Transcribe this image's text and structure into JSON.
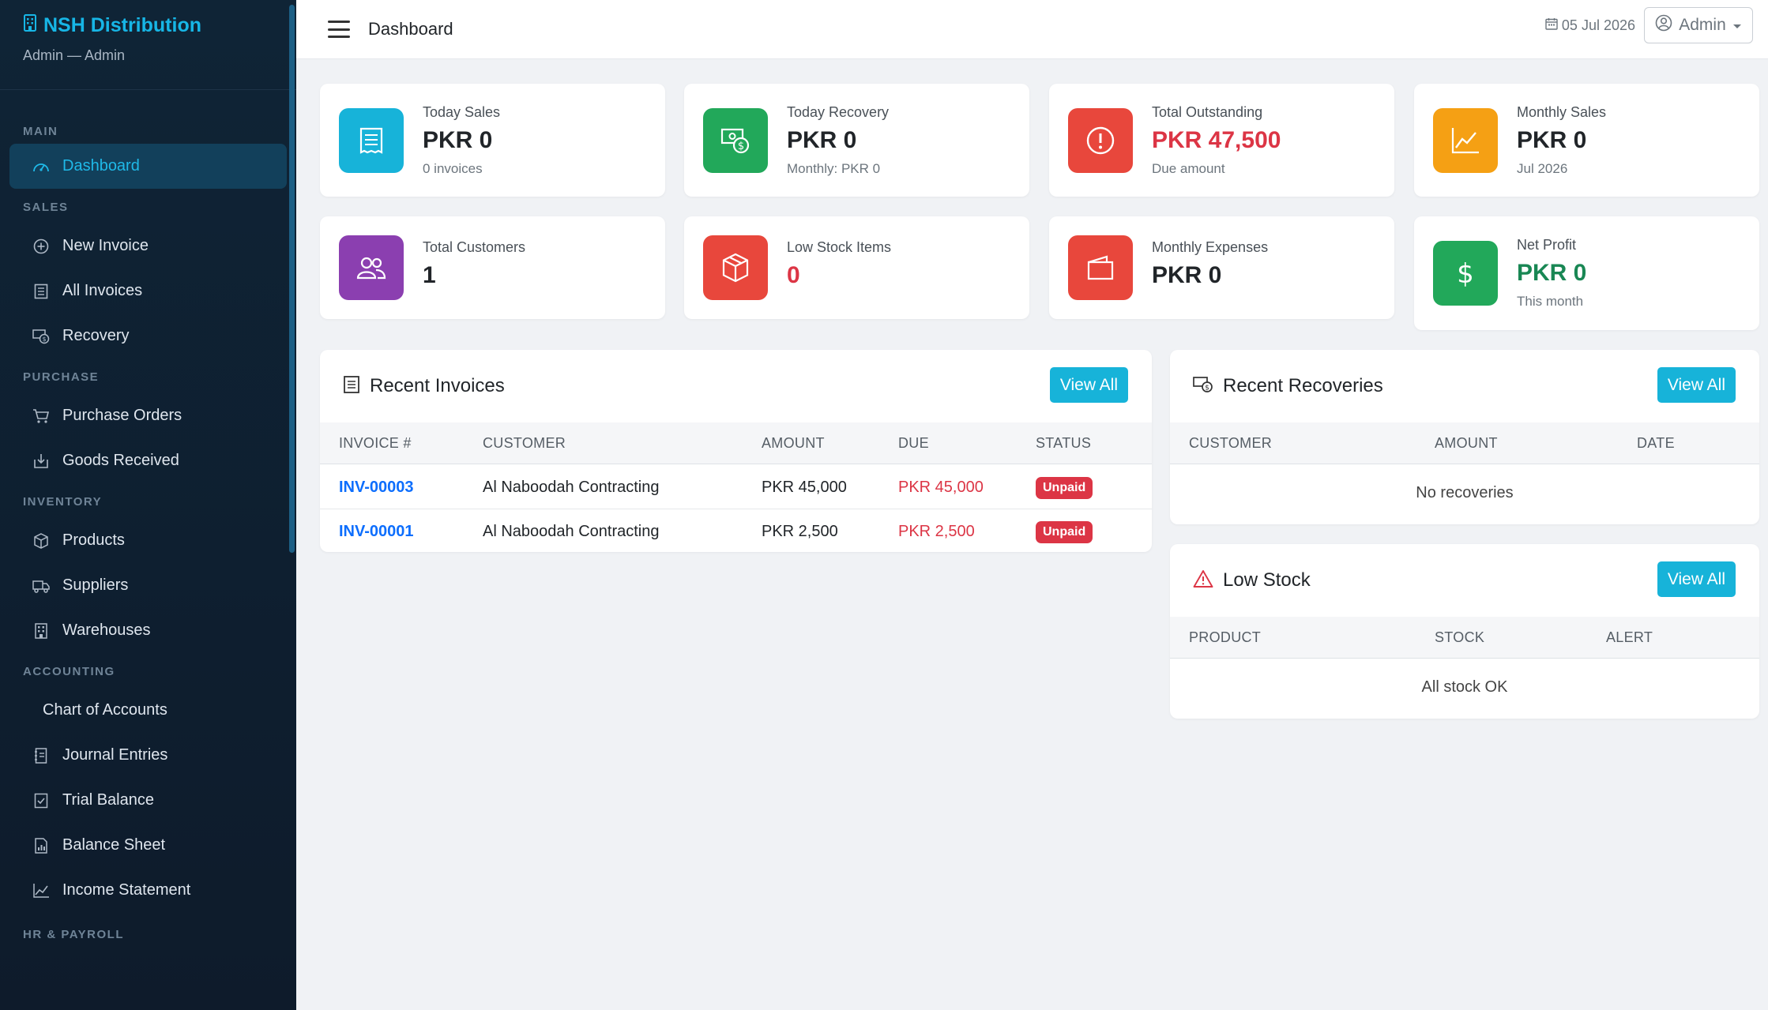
{
  "sidebar": {
    "brand": "NSH Distribution",
    "subtitle": "Admin — Admin",
    "sections": {
      "main": "MAIN",
      "sales": "SALES",
      "purchase": "PURCHASE",
      "inventory": "INVENTORY",
      "accounting": "ACCOUNTING",
      "hr": "HR & PAYROLL"
    },
    "items": {
      "dashboard": "Dashboard",
      "new_invoice": "New Invoice",
      "all_invoices": "All Invoices",
      "recovery": "Recovery",
      "purchase_orders": "Purchase Orders",
      "goods_received": "Goods Received",
      "products": "Products",
      "suppliers": "Suppliers",
      "warehouses": "Warehouses",
      "chart_of_accounts": "Chart of Accounts",
      "journal_entries": "Journal Entries",
      "trial_balance": "Trial Balance",
      "balance_sheet": "Balance Sheet",
      "income_statement": "Income Statement"
    }
  },
  "topbar": {
    "title": "Dashboard",
    "date": "05 Jul 2026",
    "user": "Admin"
  },
  "stats": {
    "today_sales": {
      "label": "Today Sales",
      "value": "PKR 0",
      "sub": "0 invoices",
      "color": "#17b3d9"
    },
    "today_recovery": {
      "label": "Today Recovery",
      "value": "PKR 0",
      "sub": "Monthly: PKR 0",
      "color": "#22a85a"
    },
    "total_outstanding": {
      "label": "Total Outstanding",
      "value": "PKR 47,500",
      "sub": "Due amount",
      "color": "#e8473c"
    },
    "monthly_sales": {
      "label": "Monthly Sales",
      "value": "PKR 0",
      "sub": "Jul 2026",
      "color": "#f5a014"
    },
    "total_customers": {
      "label": "Total Customers",
      "value": "1",
      "color": "#8b3fb0"
    },
    "low_stock_items": {
      "label": "Low Stock Items",
      "value": "0",
      "color": "#e8473c"
    },
    "monthly_expenses": {
      "label": "Monthly Expenses",
      "value": "PKR 0",
      "color": "#e8473c"
    },
    "net_profit": {
      "label": "Net Profit",
      "value": "PKR 0",
      "sub": "This month",
      "color": "#22a85a"
    }
  },
  "recent_invoices": {
    "title": "Recent Invoices",
    "view_all": "View All",
    "columns": [
      "INVOICE #",
      "CUSTOMER",
      "AMOUNT",
      "DUE",
      "STATUS"
    ],
    "rows": [
      {
        "invoice": "INV-00003",
        "customer": "Al Naboodah Contracting",
        "amount": "PKR 45,000",
        "due": "PKR 45,000",
        "status": "Unpaid"
      },
      {
        "invoice": "INV-00001",
        "customer": "Al Naboodah Contracting",
        "amount": "PKR 2,500",
        "due": "PKR 2,500",
        "status": "Unpaid"
      }
    ]
  },
  "recent_recoveries": {
    "title": "Recent Recoveries",
    "view_all": "View All",
    "columns": [
      "CUSTOMER",
      "AMOUNT",
      "DATE"
    ],
    "empty": "No recoveries"
  },
  "low_stock": {
    "title": "Low Stock",
    "view_all": "View All",
    "columns": [
      "PRODUCT",
      "STOCK",
      "ALERT"
    ],
    "empty": "All stock OK"
  }
}
